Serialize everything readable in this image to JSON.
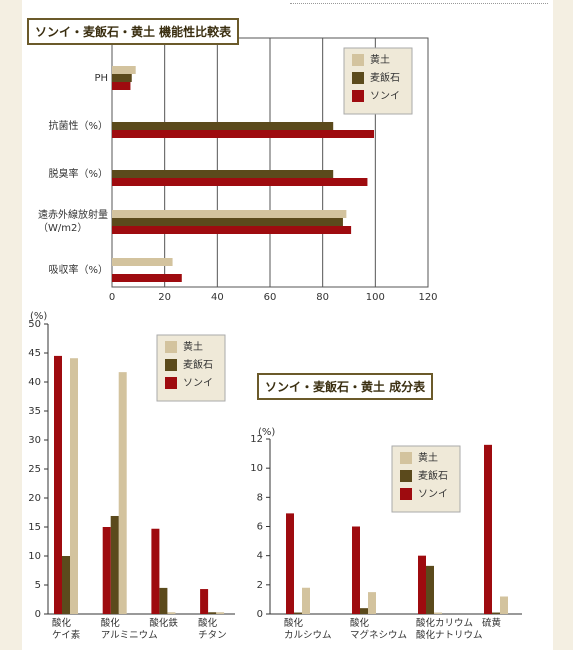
{
  "chart_data": [
    {
      "type": "bar",
      "orientation": "horizontal",
      "title": "ソンイ・麦飯石・黄土 機能性比較表",
      "categories": [
        "PH",
        "抗菌性（%）",
        "脱臭率（%）",
        "遠赤外線放射量\n（W/m2）",
        "吸収率（%）"
      ],
      "series": [
        {
          "name": "黄土",
          "color": "#d3c39e",
          "values": [
            9,
            null,
            null,
            89,
            23
          ]
        },
        {
          "name": "麦飯石",
          "color": "#5b4a1c",
          "values": [
            7.5,
            84,
            84,
            87.7,
            null
          ]
        },
        {
          "name": "ソンイ",
          "color": "#9e0b0f",
          "values": [
            7,
            99.5,
            97,
            90.8,
            26.5
          ]
        }
      ],
      "xlim": [
        0,
        120
      ],
      "xticks": [
        0,
        20,
        40,
        60,
        80,
        100,
        120
      ],
      "grid": true,
      "legend": "upper right"
    },
    {
      "type": "bar",
      "orientation": "vertical",
      "y_label": "(%)",
      "categories": [
        "酸化\nケイ素",
        "酸化\nアルミニウム",
        "酸化鉄",
        "酸化\nチタン"
      ],
      "series": [
        {
          "name": "黄土",
          "color": "#d3c39e",
          "values": [
            44.1,
            41.7,
            0.3,
            0.3
          ]
        },
        {
          "name": "麦飯石",
          "color": "#5b4a1c",
          "values": [
            10,
            16.9,
            4.5,
            0.3
          ]
        },
        {
          "name": "ソンイ",
          "color": "#9e0b0f",
          "values": [
            44.5,
            15,
            14.7,
            4.3
          ]
        }
      ],
      "ylim": [
        0,
        50
      ],
      "yticks": [
        0,
        5,
        10,
        15,
        20,
        25,
        30,
        35,
        40,
        45,
        50
      ],
      "grid": false,
      "legend": "upper right"
    },
    {
      "type": "bar",
      "orientation": "vertical",
      "title": "ソンイ・麦飯石・黄土 成分表",
      "y_label": "(%)",
      "categories": [
        "酸化\nカルシウム",
        "酸化\nマグネシウム",
        "酸化カリウム\n酸化ナトリウム",
        "硫黄"
      ],
      "series": [
        {
          "name": "黄土",
          "color": "#d3c39e",
          "values": [
            1.8,
            1.5,
            0.1,
            1.2
          ]
        },
        {
          "name": "麦飯石",
          "color": "#5b4a1c",
          "values": [
            0.1,
            0.4,
            3.3,
            0.1
          ]
        },
        {
          "name": "ソンイ",
          "color": "#9e0b0f",
          "values": [
            6.9,
            6.0,
            4.0,
            11.6
          ]
        }
      ],
      "ylim": [
        0,
        12
      ],
      "yticks": [
        0,
        2,
        4,
        6,
        8,
        10,
        12
      ],
      "grid": false,
      "legend": "upper right"
    }
  ]
}
